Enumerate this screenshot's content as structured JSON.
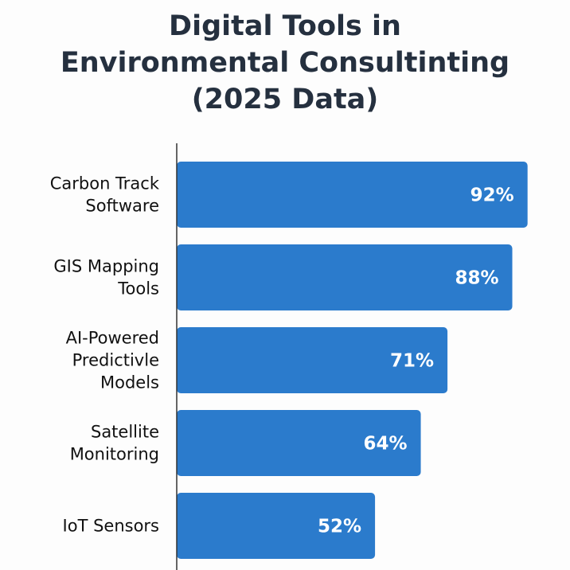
{
  "chart_data": {
    "type": "bar",
    "orientation": "horizontal",
    "title_lines": [
      "Digital Tools in",
      "Environmental Consultinting",
      "(2025 Data)"
    ],
    "categories": [
      [
        "Carbon Track",
        "Software"
      ],
      [
        "GIS Mapping",
        "Tools"
      ],
      [
        "AI-Powered",
        "Predictivle",
        "Models"
      ],
      [
        "Satellite",
        "Monitoring"
      ],
      [
        "IoT Sensors"
      ]
    ],
    "values": [
      92,
      88,
      71,
      64,
      52
    ],
    "data_labels": [
      "92%",
      "88%",
      "71%",
      "64%",
      "52%"
    ],
    "xlim": [
      0,
      100
    ],
    "grid": false,
    "bar_color": "#2b7bcc",
    "xlabel": "",
    "ylabel": ""
  }
}
